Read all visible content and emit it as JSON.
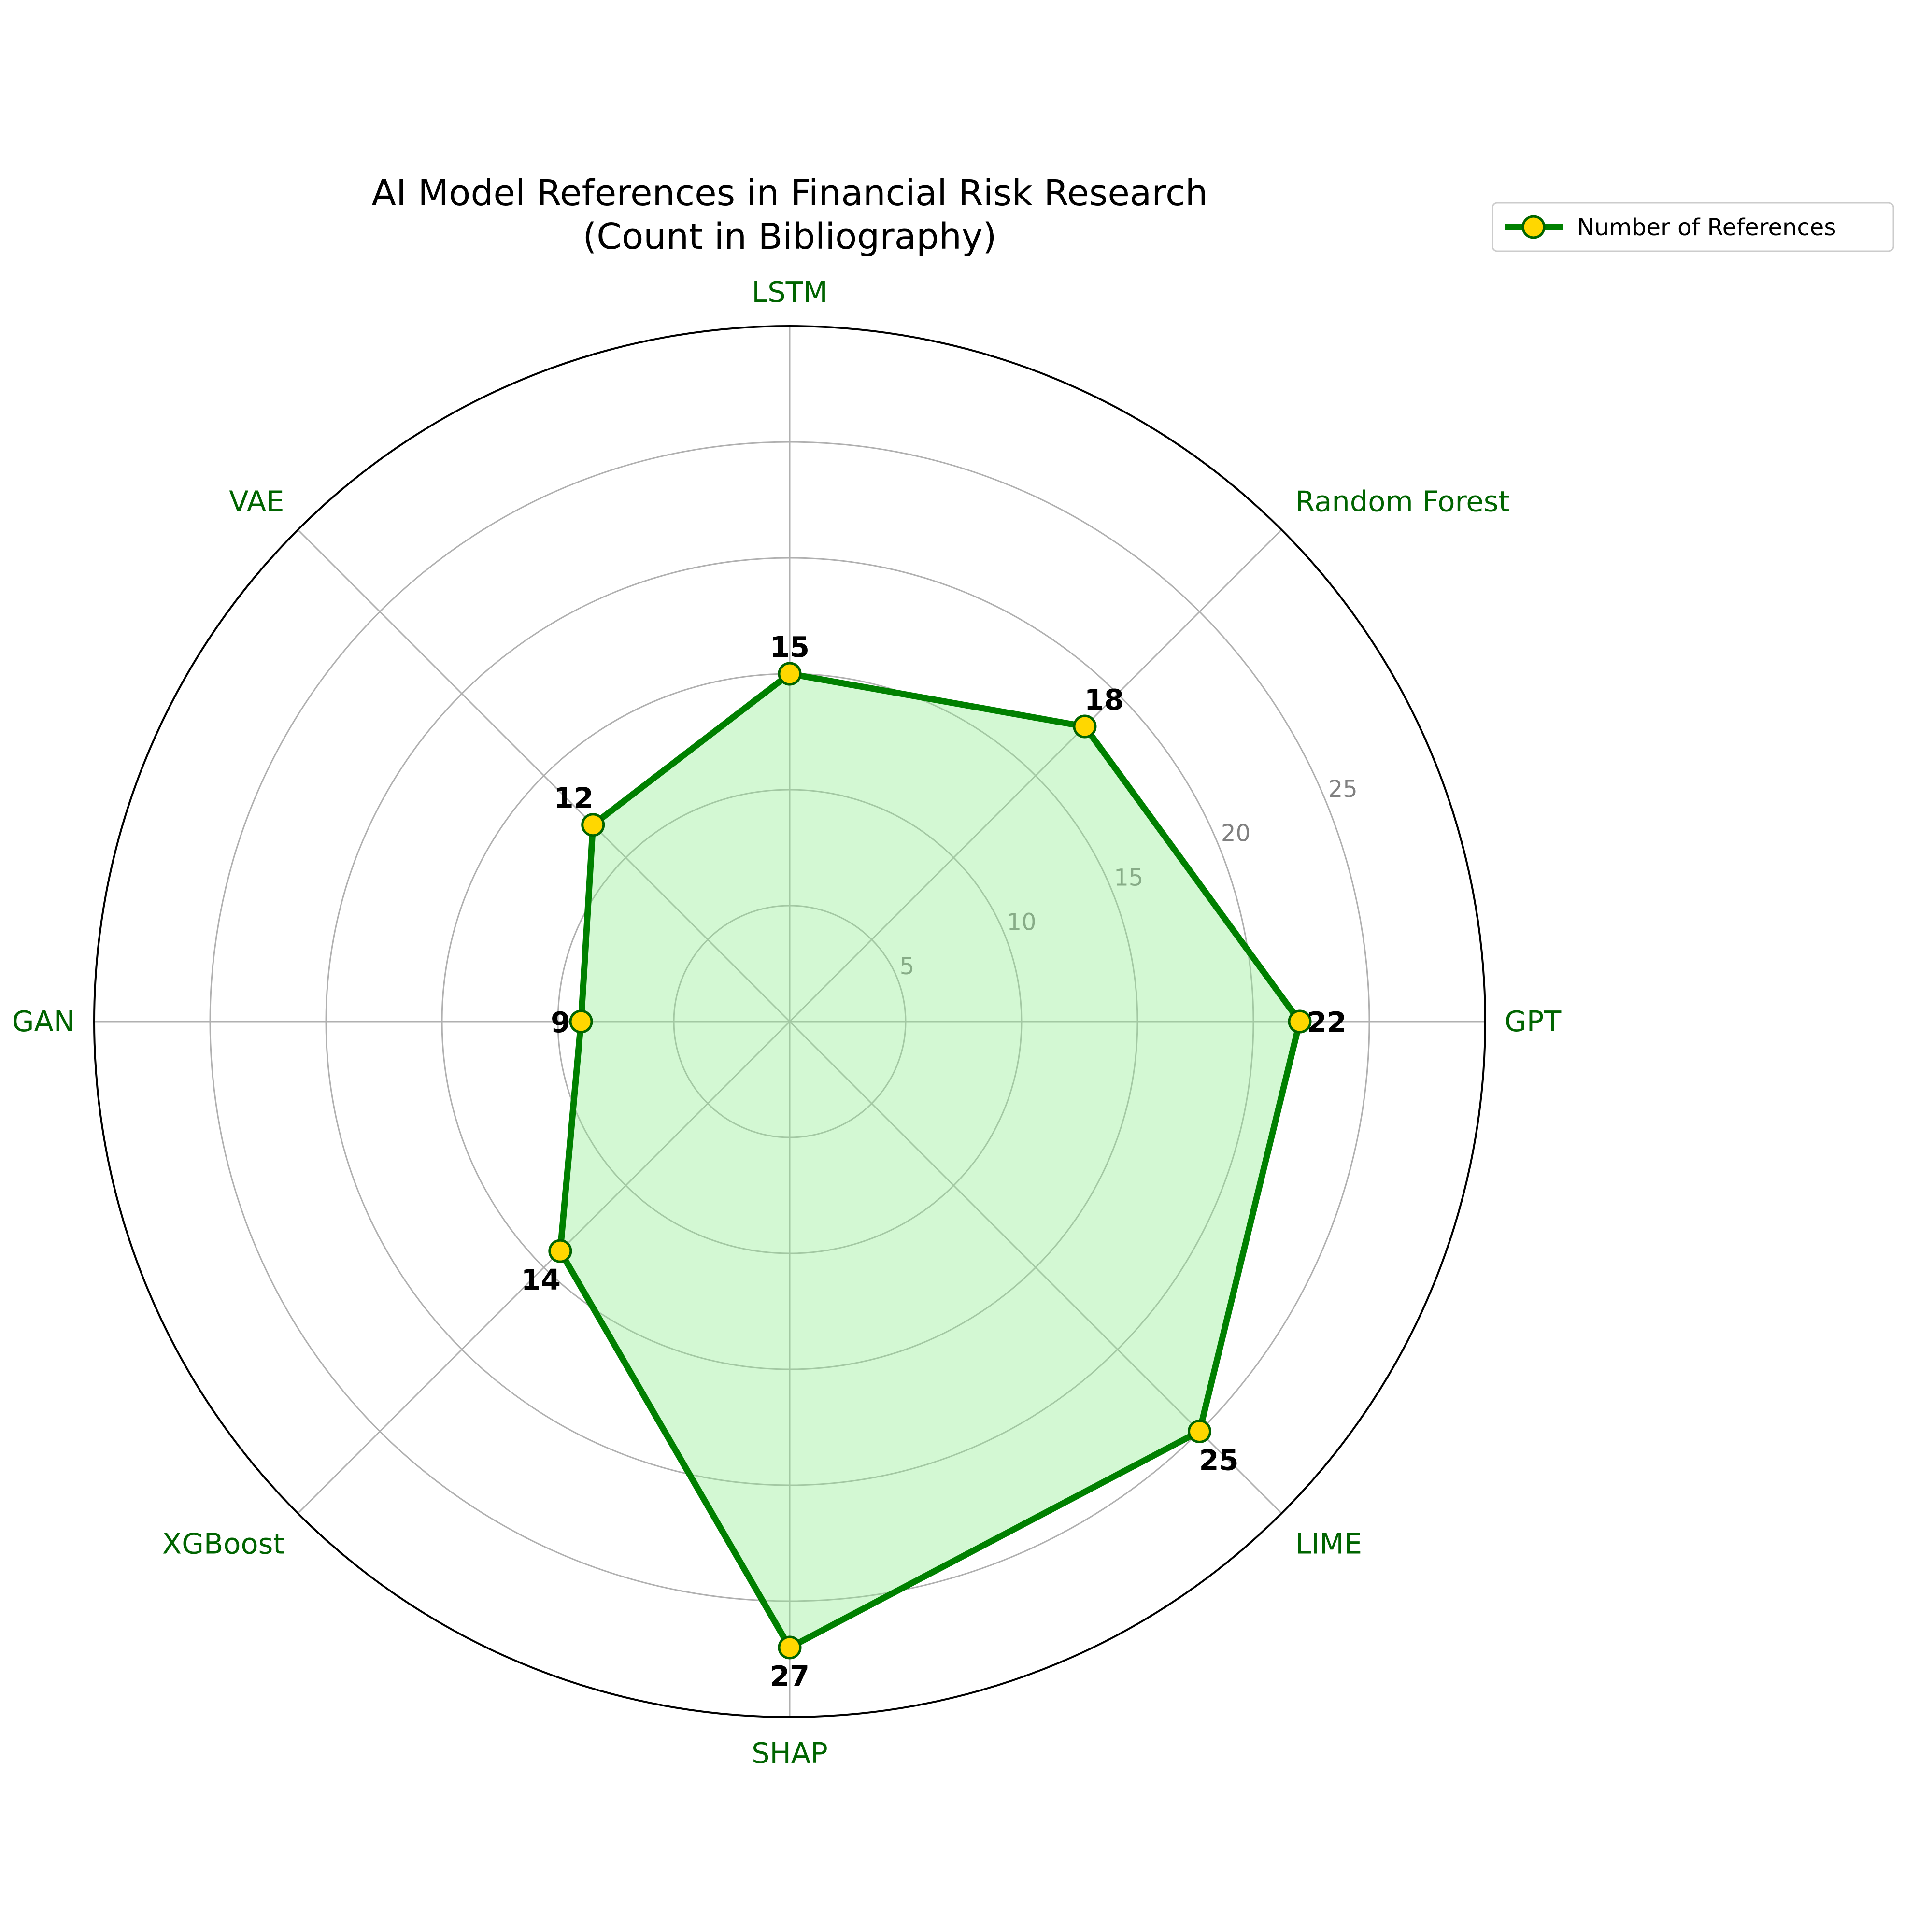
{
  "chart_data": {
    "type": "radar",
    "title": "AI Model References in Financial Risk Research\n(Count in Bibliography)",
    "categories": [
      "GPT",
      "Random Forest",
      "LSTM",
      "VAE",
      "GAN",
      "XGBoost",
      "SHAP",
      "LIME"
    ],
    "series": [
      {
        "name": "Number of References",
        "values": [
          22,
          18,
          15,
          12,
          9,
          14,
          27,
          25
        ]
      }
    ],
    "r_ticks": [
      5,
      10,
      15,
      20,
      25
    ],
    "rlim": [
      0,
      30
    ],
    "grid": true,
    "legend_position": "top-right",
    "colors": {
      "line": "#008000",
      "fill": "#90EE90",
      "marker_face": "#FFD700",
      "marker_edge": "#006400",
      "category_label": "#006400",
      "grid": "#b0b0b0",
      "tick_label": "#808080"
    }
  }
}
